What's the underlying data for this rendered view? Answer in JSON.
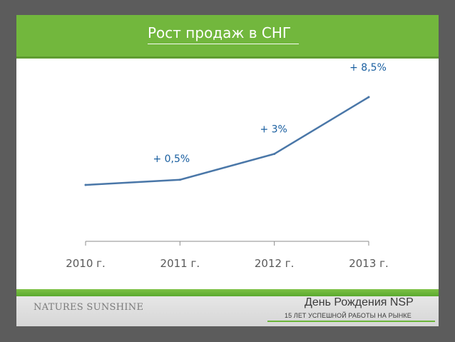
{
  "slide": {
    "title": "Рост продаж в СНГ"
  },
  "chart_data": {
    "type": "line",
    "title": "Рост продаж в СНГ",
    "categories": [
      "2010 г.",
      "2011 г.",
      "2012 г.",
      "2013 г."
    ],
    "series": [
      {
        "values": [
          0,
          0.5,
          3,
          8.5
        ],
        "color": "#4a77a8"
      }
    ],
    "data_labels": [
      "",
      "+ 0,5%",
      "+ 3%",
      "+ 8,5%"
    ],
    "label_color": "#1a5fa0",
    "y_axis_visible": false,
    "grid": false
  },
  "footer": {
    "logo_text": "NATURES SUNSHINE",
    "brand_title": "День Рождения NSP",
    "brand_subtitle": "15 ЛЕТ УСПЕШНОЙ РАБОТЫ НА РЫНКЕ",
    "accent_color": "#72b73d"
  }
}
